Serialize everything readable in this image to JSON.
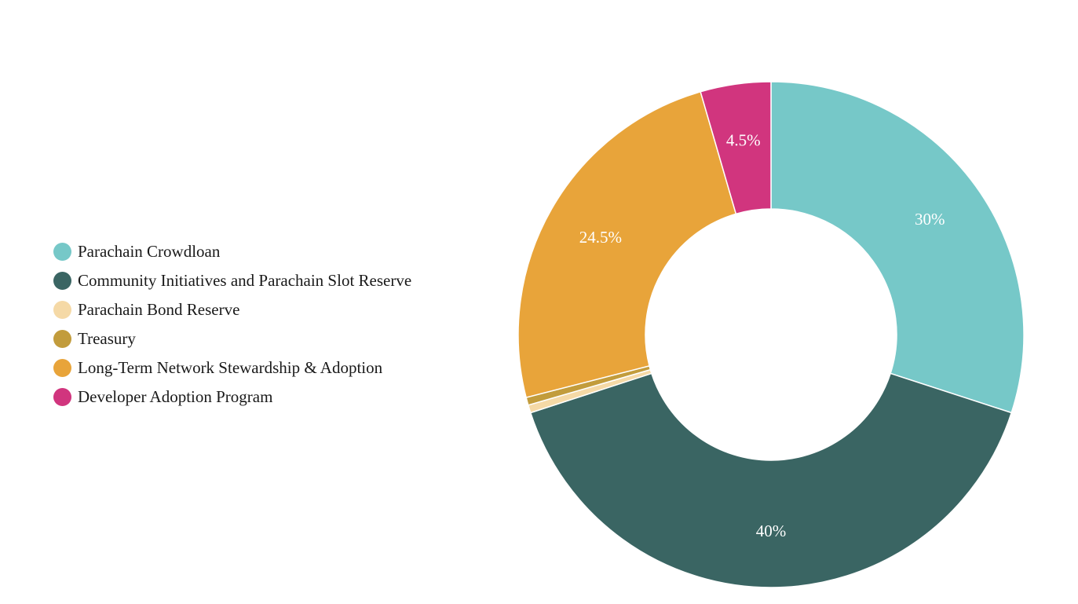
{
  "chart_data": {
    "type": "pie",
    "donut": true,
    "title": "",
    "legend_position": "left",
    "slices": [
      {
        "name": "Parachain Crowdloan",
        "value": 30,
        "label": "30%",
        "color": "#76c8c8"
      },
      {
        "name": "Community Initiatives and Parachain Slot Reserve",
        "value": 40,
        "label": "40%",
        "color": "#3a6563"
      },
      {
        "name": "Parachain Bond Reserve",
        "value": 0.5,
        "label": "",
        "color": "#f5d9a6"
      },
      {
        "name": "Treasury",
        "value": 0.5,
        "label": "",
        "color": "#c29c3c"
      },
      {
        "name": "Long-Term Network Stewardship & Adoption",
        "value": 24.5,
        "label": "24.5%",
        "color": "#e8a43a"
      },
      {
        "name": "Developer Adoption Program",
        "value": 4.5,
        "label": "4.5%",
        "color": "#d1357e"
      }
    ]
  }
}
